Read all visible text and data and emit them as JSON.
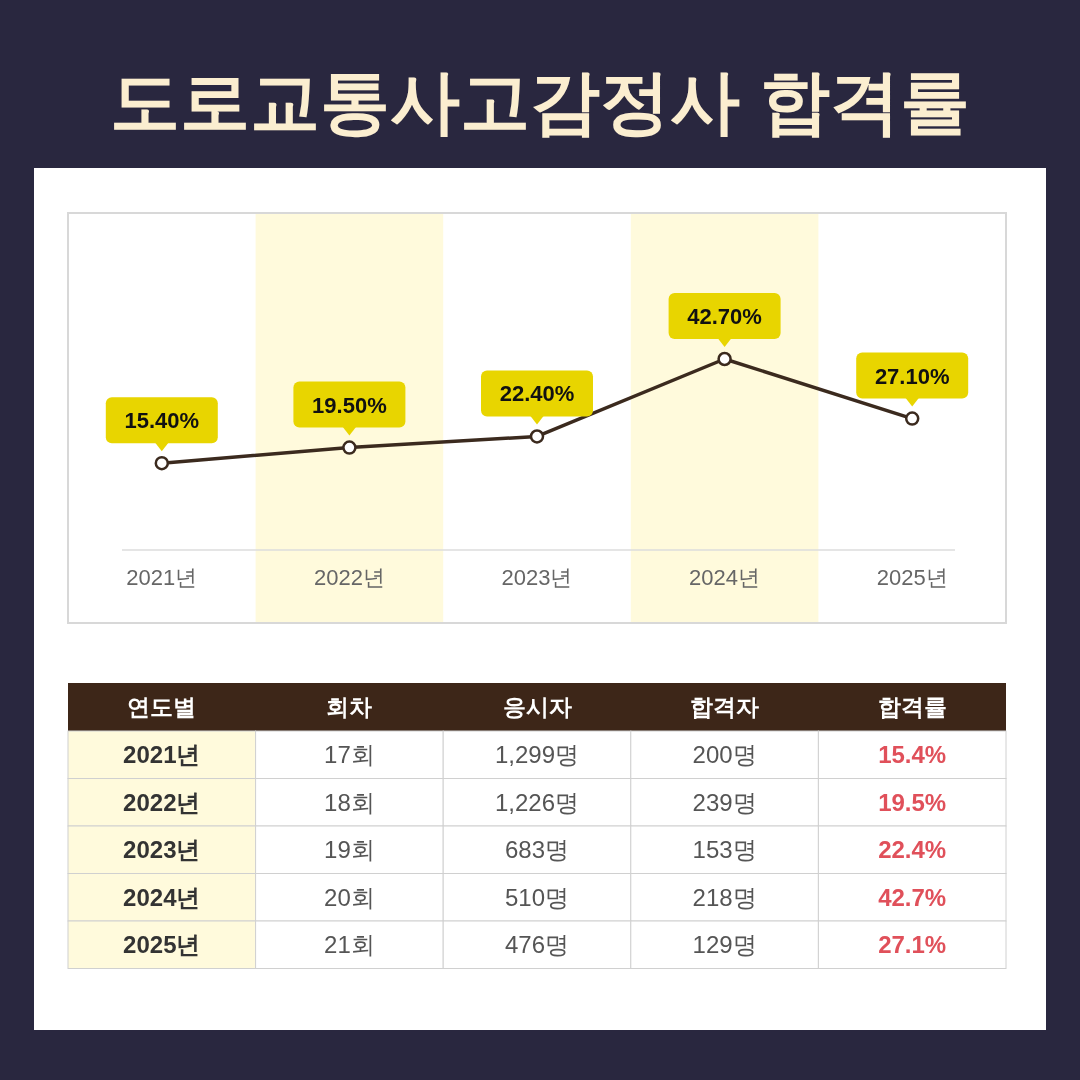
{
  "chart_data": [
    {
      "type": "line",
      "title": "도로교통사고감정사 합격률",
      "categories": [
        "2021년",
        "2022년",
        "2023년",
        "2024년",
        "2025년"
      ],
      "series": [
        {
          "color": "#3b2a1e",
          "values": [
            15.4,
            19.5,
            22.4,
            42.7,
            27.1
          ],
          "value_labels": [
            "15.40%",
            "19.50%",
            "22.40%",
            "42.70%",
            "27.10%"
          ]
        }
      ],
      "marker": "circle",
      "line_style": "solid",
      "bands": [
        {
          "axis": "x",
          "from": "2022년",
          "to": "2022년",
          "color": "#fffadc"
        },
        {
          "axis": "x",
          "from": "2024년",
          "to": "2024년",
          "color": "#fffadc"
        }
      ]
    },
    {
      "type": "heatmap",
      "ylabel": "연도별",
      "categories": [
        "회차",
        "응시자",
        "합격자",
        "합격률"
      ],
      "y_categories": [
        "2021년",
        "2022년",
        "2023년",
        "2024년",
        "2025년"
      ],
      "cells": [
        [
          17,
          1299,
          200,
          15.4
        ],
        [
          18,
          1226,
          239,
          19.5
        ],
        [
          19,
          683,
          153,
          22.4
        ],
        [
          20,
          510,
          218,
          42.7
        ],
        [
          21,
          476,
          129,
          27.1
        ]
      ],
      "cell_labels": [
        [
          "17회",
          "1,299명",
          "200명",
          "15.4%"
        ],
        [
          "18회",
          "1,226명",
          "239명",
          "19.5%"
        ],
        [
          "19회",
          "683명",
          "153명",
          "22.4%"
        ],
        [
          "20회",
          "510명",
          "218명",
          "42.7%"
        ],
        [
          "21회",
          "476명",
          "129명",
          "27.1%"
        ]
      ]
    }
  ]
}
